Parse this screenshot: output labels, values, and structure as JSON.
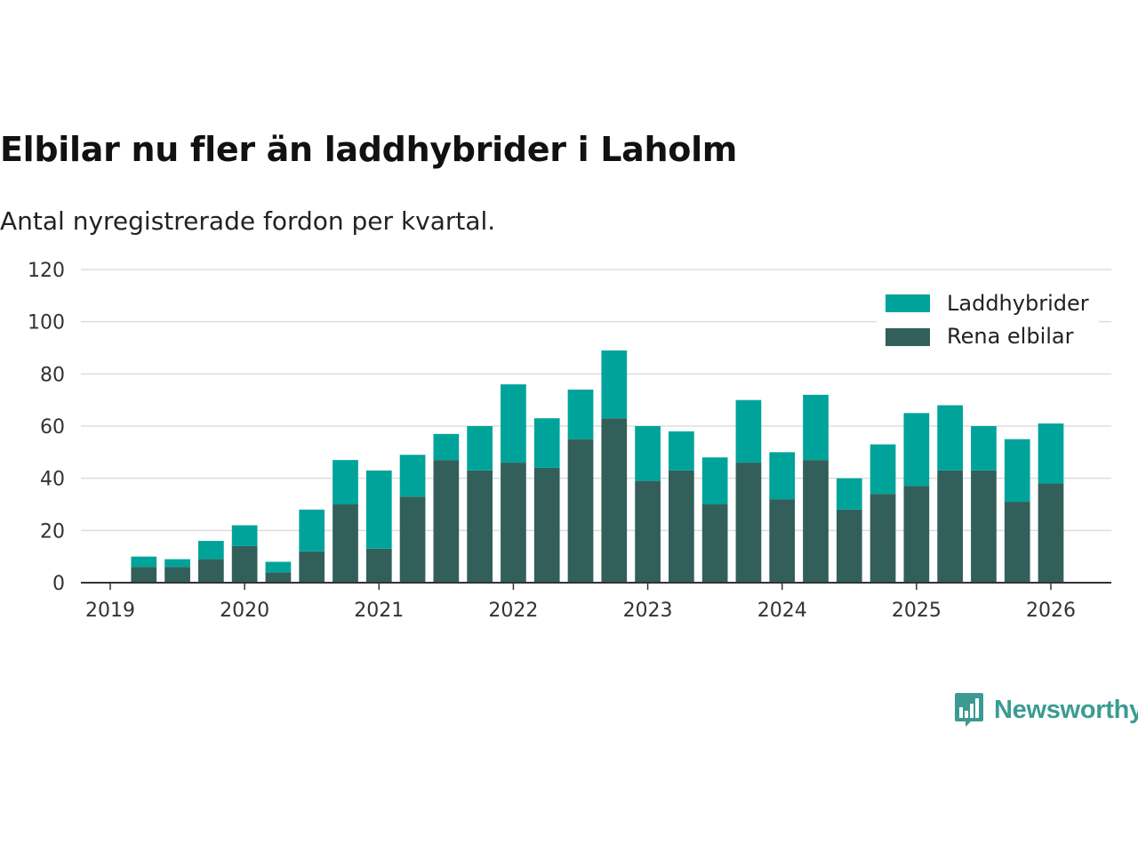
{
  "chart_data": {
    "type": "bar",
    "stacked": true,
    "title": "Elbilar nu fler än laddhybrider i Laholm",
    "subtitle": "Antal nyregistrerade fordon per kvartal.",
    "xlabel": "",
    "ylabel": "",
    "ylim": [
      0,
      120
    ],
    "y_ticks": [
      "0",
      "20",
      "40",
      "60",
      "80",
      "100",
      "120"
    ],
    "x_ticks": [
      "2019",
      "2020",
      "2021",
      "2022",
      "2023",
      "2024",
      "2025",
      "2026"
    ],
    "categories": [
      "2019 Q2",
      "2019 Q3",
      "2019 Q4",
      "2020 Q1",
      "2020 Q2",
      "2020 Q3",
      "2020 Q4",
      "2021 Q1",
      "2021 Q2",
      "2021 Q3",
      "2021 Q4",
      "2022 Q1",
      "2022 Q2",
      "2022 Q3",
      "2022 Q4",
      "2023 Q1",
      "2023 Q2",
      "2023 Q3",
      "2023 Q4",
      "2024 Q1",
      "2024 Q2",
      "2024 Q3",
      "2024 Q4",
      "2025 Q1",
      "2025 Q2",
      "2025 Q3",
      "2025 Q4",
      "2026 Q1"
    ],
    "series": [
      {
        "name": "Rena elbilar",
        "color": "#335f5b",
        "values": [
          6,
          6,
          9,
          14,
          4,
          12,
          30,
          13,
          33,
          47,
          43,
          46,
          44,
          55,
          63,
          39,
          43,
          30,
          46,
          32,
          47,
          28,
          34,
          37,
          43,
          43,
          31,
          38
        ]
      },
      {
        "name": "Laddhybrider",
        "color": "#00a39a",
        "values": [
          4,
          3,
          7,
          8,
          4,
          16,
          17,
          30,
          16,
          10,
          17,
          30,
          19,
          19,
          26,
          21,
          15,
          18,
          24,
          18,
          25,
          12,
          19,
          28,
          25,
          17,
          24,
          23
        ]
      }
    ],
    "legend": [
      "Laddhybrider",
      "Rena elbilar"
    ],
    "legend_position": "top-right",
    "grid": true
  },
  "branding": {
    "name": "Newsworthy",
    "color": "#3b9b92",
    "icon": "bar-chart-speech-bubble-icon"
  }
}
